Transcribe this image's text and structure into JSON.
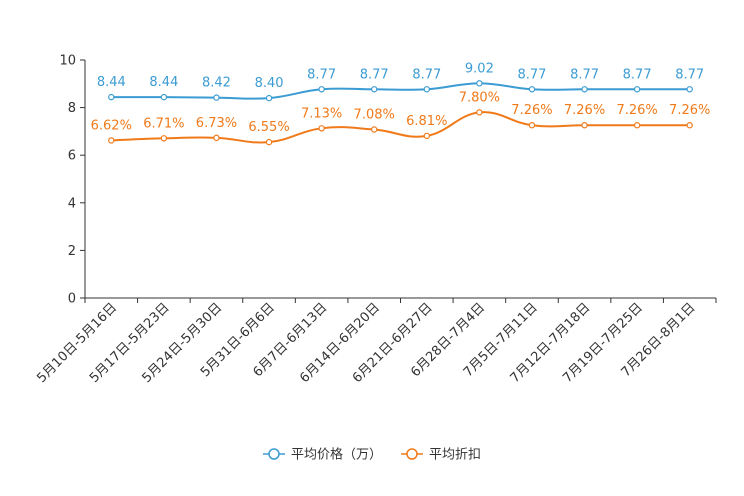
{
  "chart_data": {
    "type": "line",
    "categories": [
      "5月10日-5月16日",
      "5月17日-5月23日",
      "5月24日-5月30日",
      "5月31日-6月6日",
      "6月7日-6月13日",
      "6月14日-6月20日",
      "6月21日-6月27日",
      "6月28日-7月4日",
      "7月5日-7月11日",
      "7月12日-7月18日",
      "7月19日-7月25日",
      "7月26日-8月1日"
    ],
    "ylim": [
      0,
      10
    ],
    "yticks": [
      0,
      2,
      4,
      6,
      8,
      10
    ],
    "series": [
      {
        "name": "平均价格（万）",
        "color": "#3b9cd3",
        "values": [
          8.44,
          8.44,
          8.42,
          8.4,
          8.77,
          8.77,
          8.77,
          9.02,
          8.77,
          8.77,
          8.77,
          8.77
        ],
        "labels": [
          "8.44",
          "8.44",
          "8.42",
          "8.40",
          "8.77",
          "8.77",
          "8.77",
          "9.02",
          "8.77",
          "8.77",
          "8.77",
          "8.77"
        ]
      },
      {
        "name": "平均折扣",
        "color": "#f07a1a",
        "values": [
          6.62,
          6.71,
          6.73,
          6.55,
          7.13,
          7.08,
          6.81,
          7.8,
          7.26,
          7.26,
          7.26,
          7.26
        ],
        "labels": [
          "6.62%",
          "6.71%",
          "6.73%",
          "6.55%",
          "7.13%",
          "7.08%",
          "6.81%",
          "7.80%",
          "7.26%",
          "7.26%",
          "7.26%",
          "7.26%"
        ]
      }
    ],
    "legend": {
      "position": "bottom-center"
    }
  }
}
